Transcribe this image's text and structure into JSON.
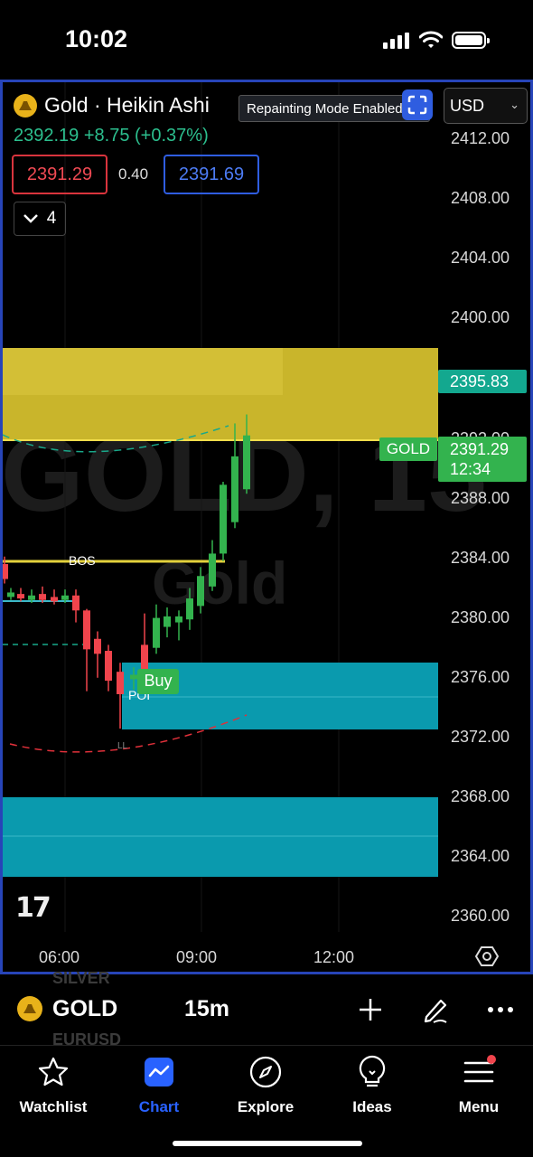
{
  "status_bar": {
    "time": "10:02"
  },
  "chart": {
    "title": "Gold · Heikin Ashi",
    "change": "2392.19  +8.75 (+0.37%)",
    "bid": "2391.29",
    "spread": "0.40",
    "ask": "2391.69",
    "indicator_count": "4",
    "repaint_notice": "Repainting Mode Enabled",
    "currency": "USD",
    "watermark_main": "GOLD, 15",
    "watermark_sub": "Gold",
    "price_axis": [
      "2412.00",
      "2408.00",
      "2404.00",
      "2400.00",
      "2392.00",
      "2388.00",
      "2384.00",
      "2380.00",
      "2376.00",
      "2372.00",
      "2368.00",
      "2364.00",
      "2360.00"
    ],
    "tag_zone": "2395.83",
    "tag_symbol": "GOLD",
    "tag_last": "2391.29",
    "tag_countdown": "12:34",
    "time_axis": [
      "06:00",
      "09:00",
      "12:00"
    ],
    "annotations": {
      "bos": "BOS",
      "poi": "POI",
      "ll": "LL",
      "buy": "Buy"
    },
    "colors": {
      "up": "#33b34e",
      "down": "#f0444c",
      "supply_zone": "#c9b52b",
      "demand_zone": "#0a9aae",
      "frame": "#2744b8"
    },
    "icons": [
      "gold-icon",
      "chevron-down-icon",
      "fullscreen-icon",
      "settings-icon",
      "tradingview-logo"
    ]
  },
  "symbol_bar": {
    "above": "SILVER",
    "symbol": "GOLD",
    "interval": "15m",
    "below": "EURUSD",
    "icons": [
      "plus-icon",
      "pen-icon",
      "more-icon"
    ]
  },
  "nav": [
    {
      "label": "Watchlist",
      "icon": "star-icon"
    },
    {
      "label": "Chart",
      "icon": "chart-icon",
      "active": true
    },
    {
      "label": "Explore",
      "icon": "compass-icon"
    },
    {
      "label": "Ideas",
      "icon": "lightbulb-icon"
    },
    {
      "label": "Menu",
      "icon": "menu-icon",
      "badge": true
    }
  ]
}
